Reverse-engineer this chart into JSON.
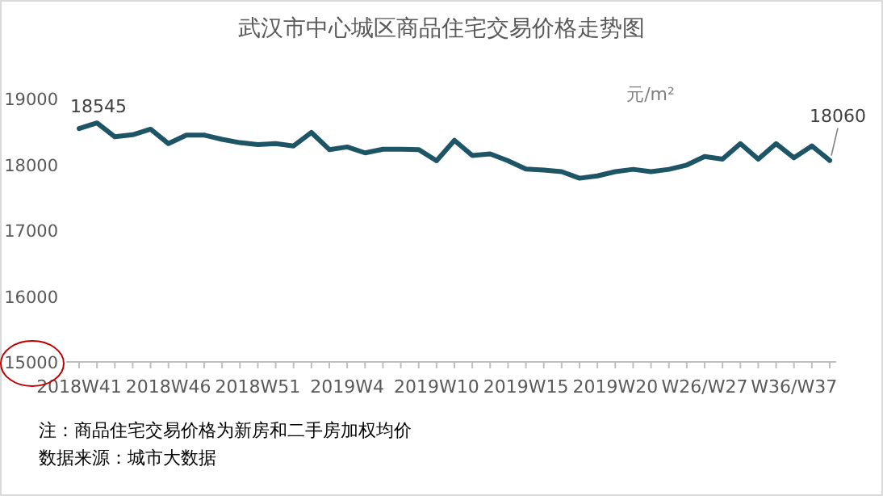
{
  "chart_data": {
    "type": "line",
    "title": "武汉市中心城区商品住宅交易价格走势图",
    "ylabel": "元/m²",
    "categories": [
      "2018W41",
      null,
      null,
      null,
      null,
      "2018W46",
      null,
      null,
      null,
      null,
      "2018W51",
      null,
      null,
      null,
      null,
      "2019W4",
      null,
      null,
      null,
      null,
      "2019W10",
      null,
      null,
      null,
      null,
      "2019W15",
      null,
      null,
      null,
      null,
      "2019W20",
      null,
      null,
      null,
      null,
      "W26/W27",
      null,
      null,
      null,
      null,
      "W36/W37",
      null,
      null
    ],
    "series": [
      {
        "color": "#1e5566",
        "values": [
          18545,
          18630,
          18420,
          18450,
          18535,
          18315,
          18445,
          18445,
          18380,
          18330,
          18300,
          18315,
          18280,
          18485,
          18225,
          18265,
          18175,
          18230,
          18230,
          18225,
          18055,
          18365,
          18135,
          18160,
          18055,
          17930,
          17915,
          17890,
          17790,
          17825,
          17890,
          17925,
          17890,
          17925,
          17990,
          18120,
          18080,
          18315,
          18080,
          18315,
          18100,
          18280,
          18060
        ],
        "value_labels": [
          "18545",
          null,
          null,
          null,
          null,
          null,
          null,
          null,
          null,
          null,
          null,
          null,
          null,
          null,
          null,
          null,
          null,
          null,
          null,
          null,
          null,
          null,
          null,
          null,
          null,
          null,
          null,
          null,
          null,
          null,
          null,
          null,
          null,
          null,
          null,
          null,
          null,
          null,
          null,
          null,
          null,
          null,
          "18060"
        ]
      }
    ],
    "ylim": [
      15000,
      19000
    ],
    "yticks": [
      15000,
      16000,
      17000,
      18000,
      19000
    ],
    "grid": false,
    "annotations": [
      "注：商品住宅交易价格为新房和二手房加权均价",
      "数据来源：城市大数据"
    ]
  }
}
